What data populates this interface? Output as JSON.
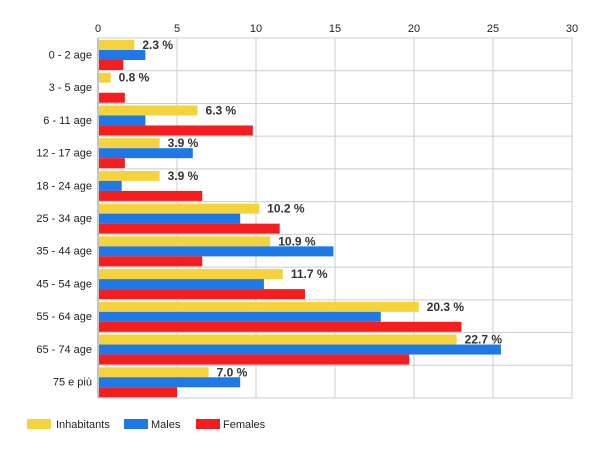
{
  "chart_data": {
    "type": "bar",
    "orientation": "horizontal",
    "categories": [
      "0 - 2 age",
      "3 - 5 age",
      "6 - 11 age",
      "12 - 17 age",
      "18 - 24 age",
      "25 - 34 age",
      "35 - 44 age",
      "45 - 54 age",
      "55 - 64 age",
      "65 - 74 age",
      "75 e più"
    ],
    "series": [
      {
        "name": "Inhabitants",
        "color": "#f5d33c",
        "values": [
          2.3,
          0.8,
          6.3,
          3.9,
          3.9,
          10.2,
          10.9,
          11.7,
          20.3,
          22.7,
          7.0
        ]
      },
      {
        "name": "Males",
        "color": "#1e78e6",
        "values": [
          3.0,
          0.0,
          3.0,
          6.0,
          1.5,
          9.0,
          14.9,
          10.5,
          17.9,
          25.5,
          9.0
        ]
      },
      {
        "name": "Females",
        "color": "#f51e1e",
        "values": [
          1.6,
          1.7,
          9.8,
          1.7,
          6.6,
          11.5,
          6.6,
          13.1,
          23.0,
          19.7,
          5.0
        ]
      }
    ],
    "data_labels": [
      "2.3 %",
      "0.8 %",
      "6.3 %",
      "3.9 %",
      "3.9 %",
      "10.2 %",
      "10.9 %",
      "11.7 %",
      "20.3 %",
      "22.7 %",
      "7.0 %"
    ],
    "xlim": [
      0,
      30
    ],
    "xticks": [
      "0",
      "5",
      "10",
      "15",
      "20",
      "25",
      "30"
    ],
    "xtick_values": [
      0,
      5,
      10,
      15,
      20,
      25,
      30
    ],
    "grid": true,
    "legend_position": "bottom-left"
  }
}
